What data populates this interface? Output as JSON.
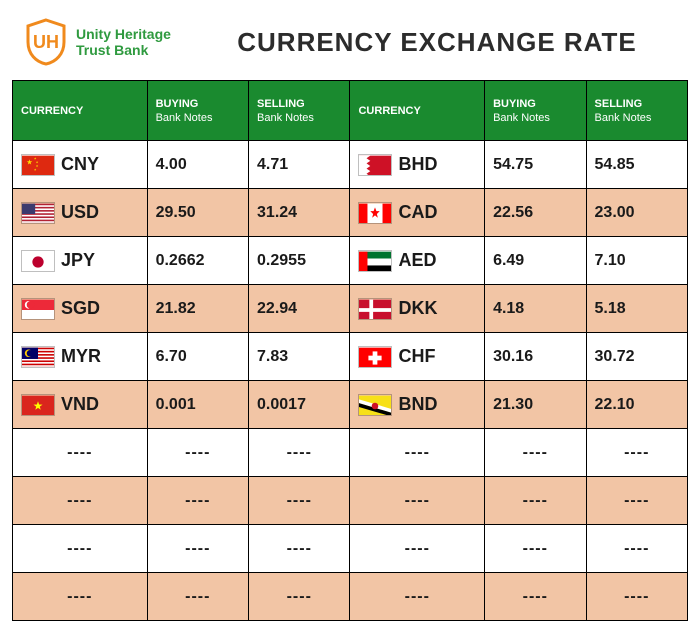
{
  "brand": {
    "line1": "Unity Heritage",
    "line2": "Trust Bank",
    "primary_color": "#2f9a3f",
    "accent_color": "#f08a1d"
  },
  "title": "CURRENCY EXCHANGE RATE",
  "colors": {
    "header_bg": "#1a8a2f",
    "odd_row": "#f2c5a5",
    "even_row": "#ffffff",
    "border": "#000000",
    "text": "#1a1a1a"
  },
  "columns": {
    "currency": "CURRENCY",
    "buying_top": "BUYING",
    "buying_sub": "Bank Notes",
    "selling_top": "SELLING",
    "selling_sub": "Bank Notes"
  },
  "placeholder": "----",
  "rows": [
    {
      "left": {
        "code": "CNY",
        "flag": "cny"
      },
      "lbuy": "4.00",
      "lsell": "4.71",
      "right": {
        "code": "BHD",
        "flag": "bhd"
      },
      "rbuy": "54.75",
      "rsell": "54.85"
    },
    {
      "left": {
        "code": "USD",
        "flag": "usd"
      },
      "lbuy": "29.50",
      "lsell": "31.24",
      "right": {
        "code": "CAD",
        "flag": "cad"
      },
      "rbuy": "22.56",
      "rsell": "23.00"
    },
    {
      "left": {
        "code": "JPY",
        "flag": "jpy"
      },
      "lbuy": "0.2662",
      "lsell": "0.2955",
      "right": {
        "code": "AED",
        "flag": "aed"
      },
      "rbuy": "6.49",
      "rsell": "7.10"
    },
    {
      "left": {
        "code": "SGD",
        "flag": "sgd"
      },
      "lbuy": "21.82",
      "lsell": "22.94",
      "right": {
        "code": "DKK",
        "flag": "dkk"
      },
      "rbuy": "4.18",
      "rsell": "5.18"
    },
    {
      "left": {
        "code": "MYR",
        "flag": "myr"
      },
      "lbuy": "6.70",
      "lsell": "7.83",
      "right": {
        "code": "CHF",
        "flag": "chf"
      },
      "rbuy": "30.16",
      "rsell": "30.72"
    },
    {
      "left": {
        "code": "VND",
        "flag": "vnd"
      },
      "lbuy": "0.001",
      "lsell": "0.0017",
      "right": {
        "code": "BND",
        "flag": "bnd"
      },
      "rbuy": "21.30",
      "rsell": "22.10"
    },
    null,
    null,
    null,
    null
  ],
  "flags": {
    "cny": {
      "bg": "#de2910",
      "type": "star",
      "star_color": "#ffde00"
    },
    "usd": {
      "type": "usa"
    },
    "jpy": {
      "bg": "#ffffff",
      "type": "circle",
      "circle": "#bc002d"
    },
    "sgd": {
      "type": "sgd"
    },
    "myr": {
      "type": "myr"
    },
    "vnd": {
      "bg": "#da251d",
      "type": "star",
      "star_color": "#ffff00",
      "center": true
    },
    "bhd": {
      "type": "bhd"
    },
    "cad": {
      "type": "cad"
    },
    "aed": {
      "type": "aed"
    },
    "dkk": {
      "type": "dkk"
    },
    "chf": {
      "type": "chf"
    },
    "bnd": {
      "type": "bnd"
    }
  }
}
